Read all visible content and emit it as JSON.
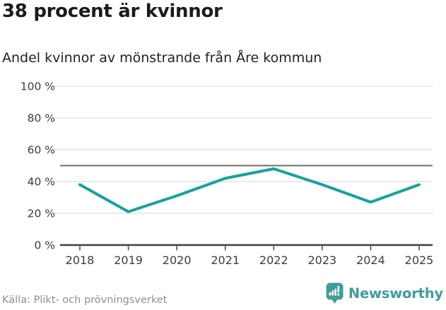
{
  "chart_data": {
    "type": "line",
    "title": "38 procent är kvinnor",
    "subtitle": "Andel kvinnor av mönstrande från Åre kommun",
    "categories": [
      "2018",
      "2019",
      "2020",
      "2021",
      "2022",
      "2023",
      "2024",
      "2025"
    ],
    "series": [
      {
        "name": "Andel kvinnor",
        "values": [
          38,
          21,
          31,
          42,
          48,
          38,
          27,
          38
        ]
      }
    ],
    "unit": "%",
    "xlabel": "",
    "ylabel": "",
    "ylim": [
      0,
      100
    ],
    "yticks": [
      0,
      20,
      40,
      60,
      80,
      100
    ],
    "ytick_suffix": " %",
    "reference_line": 50,
    "grid": true,
    "legend": "none",
    "colors": {
      "line": "#15a39a",
      "grid": "#e4e4e4",
      "reference": "#6f6f6f",
      "axis": "#3f3f3f",
      "tick_text": "#3c3c3c"
    }
  },
  "footer": {
    "source": "Källa: Plikt- och prövningsverket",
    "brand": "Newsworthy",
    "brand_color": "#3f9e99"
  }
}
